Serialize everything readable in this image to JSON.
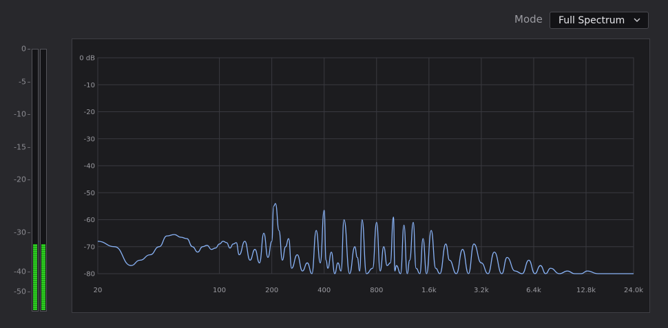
{
  "header": {
    "mode_label": "Mode",
    "mode_value": "Full Spectrum",
    "dropdown_icon": "chevron-down-icon"
  },
  "level_meter": {
    "scale_labels": [
      "0",
      "-5",
      "-10",
      "-15",
      "-20",
      "-30",
      "-40",
      "-50"
    ],
    "channels": [
      {
        "level_db": -33
      },
      {
        "level_db": -33
      }
    ],
    "fill_color": "#2ecc21"
  },
  "chart_data": {
    "type": "line",
    "x_scale": "log",
    "x_tick_labels": [
      "20",
      "100",
      "200",
      "400",
      "800",
      "1.6k",
      "3.2k",
      "6.4k",
      "12.8k",
      "24.0k"
    ],
    "y_tick_labels": [
      "0 dB",
      "-10",
      "-20",
      "-30",
      "-40",
      "-50",
      "-60",
      "-70",
      "-80"
    ],
    "xlim": [
      20,
      24000
    ],
    "ylim": [
      -80,
      0
    ],
    "grid": true,
    "line_color": "#8ab4f8",
    "series": [
      {
        "x": [
          20,
          25,
          31,
          35,
          40,
          45,
          50,
          55,
          60,
          65,
          70,
          75,
          80,
          85,
          90,
          95,
          100,
          105,
          110,
          115,
          120,
          125,
          130,
          140,
          150,
          160,
          170,
          180,
          190,
          200,
          205,
          210,
          220,
          230,
          240,
          250,
          260,
          280,
          300,
          320,
          340,
          360,
          380,
          400,
          410,
          420,
          440,
          460,
          480,
          500,
          520,
          560,
          600,
          620,
          640,
          660,
          700,
          760,
          800,
          840,
          880,
          920,
          960,
          1000,
          1020,
          1040,
          1100,
          1150,
          1200,
          1240,
          1300,
          1350,
          1420,
          1480,
          1550,
          1650,
          1750,
          1850,
          2000,
          2100,
          2300,
          2500,
          2700,
          2900,
          3200,
          3500,
          3800,
          4200,
          4500,
          5000,
          5500,
          6000,
          6500,
          7000,
          7500,
          8000,
          9000,
          10000,
          11000,
          12000,
          13000,
          15000,
          17000,
          19000,
          24000
        ],
        "values": [
          -68,
          -70,
          -77,
          -75,
          -73,
          -70,
          -66,
          -65.5,
          -66.5,
          -67,
          -70,
          -72,
          -70,
          -69.5,
          -71,
          -70.5,
          -69,
          -68,
          -68.5,
          -70.5,
          -69,
          -68.5,
          -73,
          -68,
          -75,
          -71,
          -76,
          -65,
          -74,
          -68,
          -55,
          -54,
          -64,
          -75,
          -70,
          -67,
          -78,
          -73,
          -79,
          -76,
          -80,
          -64,
          -76,
          -56.5,
          -75,
          -78,
          -72,
          -80,
          -76,
          -79,
          -60,
          -80,
          -70,
          -74,
          -79,
          -60,
          -80,
          -78,
          -61,
          -79,
          -70,
          -77,
          -76,
          -59,
          -79,
          -77,
          -80,
          -62,
          -80,
          -75,
          -61,
          -78,
          -80,
          -67,
          -80,
          -64,
          -78,
          -80,
          -69,
          -75,
          -80,
          -71,
          -80,
          -69,
          -76,
          -80,
          -72,
          -80,
          -74,
          -79,
          -80,
          -75,
          -80,
          -77,
          -80,
          -78,
          -80,
          -79,
          -80,
          -80,
          -79,
          -80,
          -80,
          -80,
          -80
        ]
      }
    ]
  }
}
